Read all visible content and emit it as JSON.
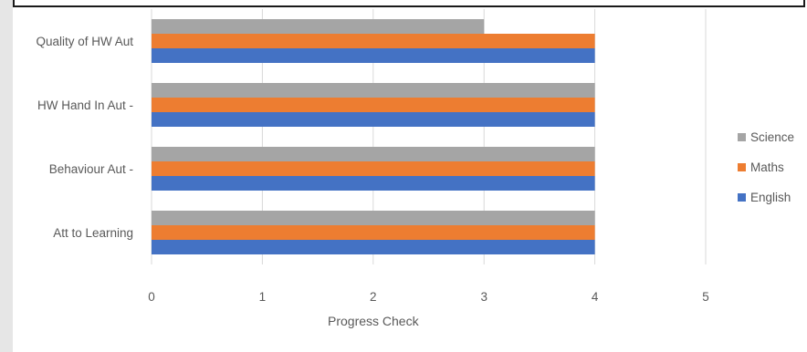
{
  "chart_data": {
    "type": "bar",
    "orientation": "horizontal",
    "categories": [
      "Att to Learning",
      "Behaviour Aut -",
      "HW Hand In Aut -",
      "Quality of HW Aut"
    ],
    "series": [
      {
        "name": "English",
        "color": "#4472c4",
        "values": [
          4,
          4,
          4,
          4
        ]
      },
      {
        "name": "Maths",
        "color": "#ed7d31",
        "values": [
          4,
          4,
          4,
          4
        ]
      },
      {
        "name": "Science",
        "color": "#a5a5a5",
        "values": [
          4,
          4,
          4,
          3
        ]
      }
    ],
    "xlabel": "Progress Check",
    "xlim": [
      0,
      5
    ],
    "xticks": [
      "0",
      "1",
      "2",
      "3",
      "4",
      "5"
    ],
    "grid": "vertical",
    "legend": "right"
  }
}
